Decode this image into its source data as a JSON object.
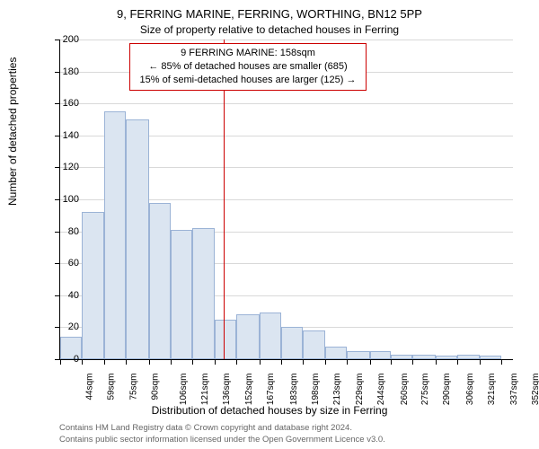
{
  "titles": {
    "main": "9, FERRING MARINE, FERRING, WORTHING, BN12 5PP",
    "sub": "Size of property relative to detached houses in Ferring"
  },
  "annotation": {
    "line1": "9 FERRING MARINE: 158sqm",
    "line2": "← 85% of detached houses are smaller (685)",
    "line3": "15% of semi-detached houses are larger (125) →"
  },
  "chart": {
    "type": "histogram",
    "ylim": [
      0,
      200
    ],
    "ytick_step": 20,
    "ylabel": "Number of detached properties",
    "xlabel": "Distribution of detached houses by size in Ferring",
    "bar_fill": "#dbe5f1",
    "bar_border": "#9bb3d6",
    "grid_color": "#d9d9d9",
    "ref_line_color": "#cc0000",
    "ref_line_x": 158,
    "background": "#ffffff",
    "x_start": 44,
    "x_end": 360,
    "x_tick_labels": [
      "44sqm",
      "59sqm",
      "75sqm",
      "90sqm",
      "106sqm",
      "121sqm",
      "136sqm",
      "152sqm",
      "167sqm",
      "183sqm",
      "198sqm",
      "213sqm",
      "229sqm",
      "244sqm",
      "260sqm",
      "275sqm",
      "290sqm",
      "306sqm",
      "321sqm",
      "337sqm",
      "352sqm"
    ],
    "x_tick_positions": [
      44,
      59,
      75,
      90,
      106,
      121,
      136,
      152,
      167,
      183,
      198,
      213,
      229,
      244,
      260,
      275,
      290,
      306,
      321,
      337,
      352
    ],
    "bars": [
      {
        "x": 44,
        "w": 15,
        "h": 14
      },
      {
        "x": 59,
        "w": 16,
        "h": 92
      },
      {
        "x": 75,
        "w": 15,
        "h": 155
      },
      {
        "x": 90,
        "w": 16,
        "h": 150
      },
      {
        "x": 106,
        "w": 15,
        "h": 98
      },
      {
        "x": 121,
        "w": 15,
        "h": 81
      },
      {
        "x": 136,
        "w": 16,
        "h": 82
      },
      {
        "x": 152,
        "w": 15,
        "h": 25
      },
      {
        "x": 167,
        "w": 16,
        "h": 28
      },
      {
        "x": 183,
        "w": 15,
        "h": 29
      },
      {
        "x": 198,
        "w": 15,
        "h": 20
      },
      {
        "x": 213,
        "w": 16,
        "h": 18
      },
      {
        "x": 229,
        "w": 15,
        "h": 8
      },
      {
        "x": 244,
        "w": 16,
        "h": 5
      },
      {
        "x": 260,
        "w": 15,
        "h": 5
      },
      {
        "x": 275,
        "w": 15,
        "h": 3
      },
      {
        "x": 290,
        "w": 16,
        "h": 3
      },
      {
        "x": 306,
        "w": 15,
        "h": 2
      },
      {
        "x": 321,
        "w": 16,
        "h": 3
      },
      {
        "x": 337,
        "w": 15,
        "h": 2
      }
    ]
  },
  "footer": {
    "line1": "Contains HM Land Registry data © Crown copyright and database right 2024.",
    "line2": "Contains public sector information licensed under the Open Government Licence v3.0."
  }
}
